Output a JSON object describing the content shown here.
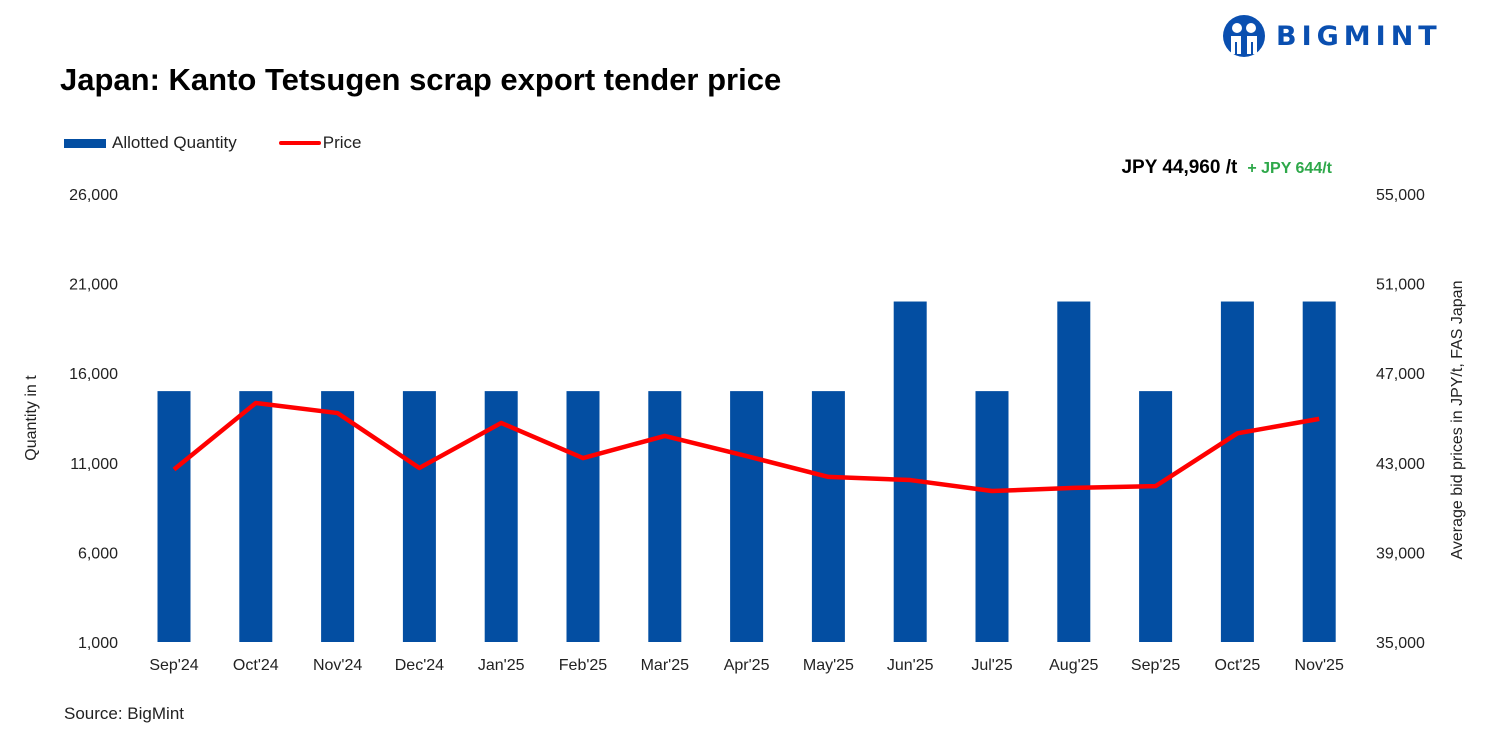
{
  "header": {
    "title": "Japan: Kanto Tetsugen scrap export tender price",
    "logo_text": "BIGMINT"
  },
  "annotation": {
    "price": "JPY 44,960 /t",
    "change": "+ JPY 644/t",
    "change_color": "#2ea84a"
  },
  "source": "Source: BigMint",
  "chart_data": {
    "type": "bar+line",
    "categories": [
      "Sep'24",
      "Oct'24",
      "Nov'24",
      "Dec'24",
      "Jan'25",
      "Feb'25",
      "Mar'25",
      "Apr'25",
      "May'25",
      "Jun'25",
      "Jul'25",
      "Aug'25",
      "Sep'25",
      "Oct'25",
      "Nov'25"
    ],
    "series": [
      {
        "name": "Allotted Quantity",
        "type": "bar",
        "axis": "left",
        "color": "#034ea2",
        "values": [
          15000,
          15000,
          15000,
          15000,
          15000,
          15000,
          15000,
          15000,
          15000,
          20000,
          15000,
          20000,
          15000,
          20000,
          20000
        ]
      },
      {
        "name": "Price",
        "type": "line",
        "axis": "right",
        "color": "#ff0000",
        "values": [
          42700,
          45670,
          45220,
          42770,
          44780,
          43210,
          44200,
          43300,
          42370,
          42230,
          41740,
          41880,
          41960,
          44316,
          44960
        ]
      }
    ],
    "ylabel_left": "Quantity in t",
    "ylabel_right": "Average bid prices in JPY/t, FAS Japan",
    "ylim_left": [
      1000,
      26000
    ],
    "yticks_left": [
      "1,000",
      "6,000",
      "11,000",
      "16,000",
      "21,000",
      "26,000"
    ],
    "ylim_right": [
      35000,
      55000
    ],
    "yticks_right": [
      "35,000",
      "39,000",
      "43,000",
      "47,000",
      "51,000",
      "55,000"
    ],
    "grid": false,
    "legend_position": "top-left"
  }
}
